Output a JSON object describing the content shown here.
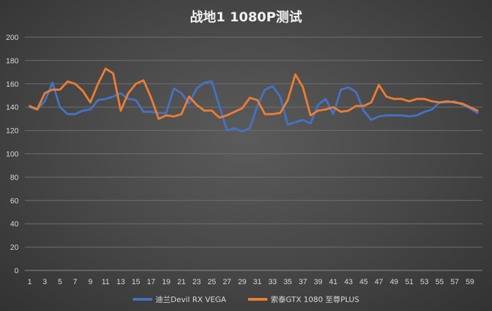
{
  "chart_data": {
    "type": "line",
    "title": "战地1 1080P测试",
    "xlabel": "",
    "ylabel": "",
    "ylim": [
      0,
      200
    ],
    "yticks": [
      0,
      20,
      40,
      60,
      80,
      100,
      120,
      140,
      160,
      180,
      200
    ],
    "x": [
      1,
      2,
      3,
      4,
      5,
      6,
      7,
      8,
      9,
      10,
      11,
      12,
      13,
      14,
      15,
      16,
      17,
      18,
      19,
      20,
      21,
      22,
      23,
      24,
      25,
      26,
      27,
      28,
      29,
      30,
      31,
      32,
      33,
      34,
      35,
      36,
      37,
      38,
      39,
      40,
      41,
      42,
      43,
      44,
      45,
      46,
      47,
      48,
      49,
      50,
      51,
      52,
      53,
      54,
      55,
      56,
      57,
      58,
      59,
      60
    ],
    "xticks": [
      1,
      3,
      5,
      7,
      9,
      11,
      13,
      15,
      17,
      19,
      21,
      23,
      25,
      27,
      29,
      31,
      33,
      35,
      37,
      39,
      41,
      43,
      45,
      47,
      49,
      51,
      53,
      55,
      57,
      59
    ],
    "grid": "horizontal",
    "legend_position": "bottom",
    "series": [
      {
        "name": "迪兰Devil RX VEGA",
        "color": "#4472c4",
        "values": [
          140,
          138,
          145,
          161,
          140,
          134,
          134,
          137,
          138,
          146,
          147,
          149,
          152,
          147,
          146,
          136,
          136,
          135,
          135,
          156,
          152,
          143,
          156,
          161,
          162,
          141,
          120,
          122,
          119,
          122,
          141,
          155,
          158,
          149,
          125,
          127,
          129,
          126,
          142,
          147,
          134,
          155,
          157,
          153,
          137,
          129,
          132,
          133,
          133,
          133,
          132,
          133,
          136,
          138,
          144,
          144,
          145,
          142,
          139,
          135
        ]
      },
      {
        "name": "索泰GTX 1080 至尊PLUS",
        "color": "#ed7d31",
        "values": [
          141,
          138,
          152,
          155,
          155,
          162,
          160,
          154,
          144,
          160,
          173,
          169,
          137,
          152,
          160,
          163,
          148,
          130,
          133,
          132,
          134,
          149,
          142,
          137,
          137,
          131,
          133,
          136,
          139,
          148,
          146,
          134,
          134,
          135,
          146,
          168,
          157,
          133,
          137,
          138,
          140,
          136,
          137,
          141,
          141,
          144,
          159,
          149,
          147,
          147,
          145,
          147,
          147,
          145,
          144,
          145,
          144,
          143,
          140,
          137
        ]
      }
    ]
  }
}
